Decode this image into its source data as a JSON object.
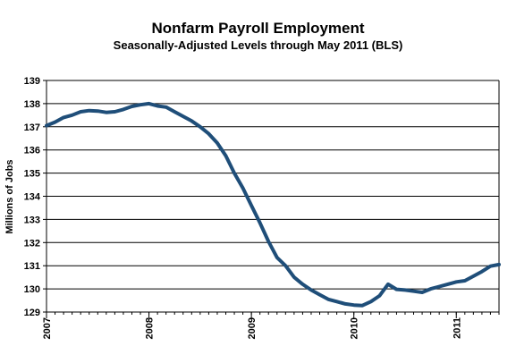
{
  "chart_data": {
    "type": "line",
    "title": "Nonfarm Payroll Employment",
    "subtitle": "Seasonally-Adjusted Levels through May 2011 (BLS)",
    "xlabel": "",
    "ylabel": "Millions of Jobs",
    "ylim": [
      129,
      139
    ],
    "xlim": [
      2007.0,
      2011.4167
    ],
    "y_ticks": [
      129,
      130,
      131,
      132,
      133,
      134,
      135,
      136,
      137,
      138,
      139
    ],
    "x_ticks": [
      {
        "value": 2007,
        "label": "2007"
      },
      {
        "value": 2008,
        "label": "2008"
      },
      {
        "value": 2009,
        "label": "2009"
      },
      {
        "value": 2010,
        "label": "2010"
      },
      {
        "value": 2011,
        "label": "2011"
      }
    ],
    "grid": "horizontal",
    "series_color": "#1F4E79",
    "series": [
      {
        "name": "",
        "x": [
          2007.0,
          2007.0833,
          2007.1667,
          2007.25,
          2007.3333,
          2007.4167,
          2007.5,
          2007.5833,
          2007.6667,
          2007.75,
          2007.8333,
          2007.9167,
          2008.0,
          2008.0833,
          2008.1667,
          2008.25,
          2008.3333,
          2008.4167,
          2008.5,
          2008.5833,
          2008.6667,
          2008.75,
          2008.8333,
          2008.9167,
          2009.0,
          2009.0833,
          2009.1667,
          2009.25,
          2009.3333,
          2009.4167,
          2009.5,
          2009.5833,
          2009.6667,
          2009.75,
          2009.8333,
          2009.9167,
          2010.0,
          2010.0833,
          2010.1667,
          2010.25,
          2010.3333,
          2010.4167,
          2010.5,
          2010.5833,
          2010.6667,
          2010.75,
          2010.8333,
          2010.9167,
          2011.0,
          2011.0833,
          2011.1667,
          2011.25,
          2011.3333,
          2011.4167
        ],
        "y": [
          137.05,
          137.2,
          137.4,
          137.5,
          137.65,
          137.7,
          137.68,
          137.62,
          137.65,
          137.75,
          137.88,
          137.95,
          138.0,
          137.9,
          137.85,
          137.65,
          137.45,
          137.25,
          137.0,
          136.7,
          136.3,
          135.75,
          135.0,
          134.35,
          133.6,
          132.85,
          132.05,
          131.35,
          131.0,
          130.5,
          130.2,
          129.95,
          129.75,
          129.55,
          129.45,
          129.35,
          129.3,
          129.28,
          129.45,
          129.7,
          130.2,
          129.98,
          129.95,
          129.9,
          129.85,
          130.0,
          130.1,
          130.2,
          130.3,
          130.35,
          130.55,
          130.75,
          130.98,
          131.05
        ]
      }
    ]
  }
}
